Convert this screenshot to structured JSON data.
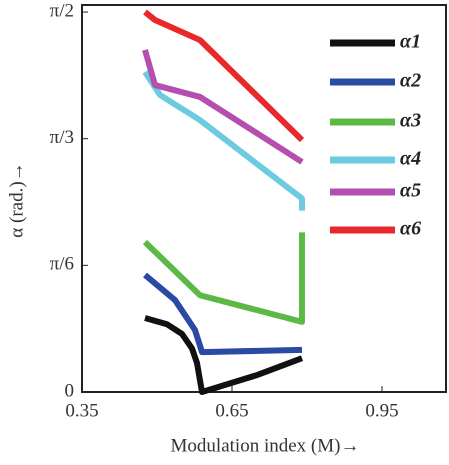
{
  "chart_data": {
    "type": "line",
    "xlabel": "Modulation index (M)→",
    "ylabel": "α (rad.)→",
    "xlim": [
      0.35,
      1.08
    ],
    "xticks": [
      0.35,
      0.65,
      0.95
    ],
    "ylim": [
      0,
      1.6
    ],
    "yticks": [
      0,
      {
        "value": 0.5236,
        "label": "π/6"
      },
      {
        "value": 1.0472,
        "label": "π/3"
      },
      {
        "value": 1.5708,
        "label": "π/2"
      }
    ],
    "series": [
      {
        "name": "α1",
        "color": "#111111",
        "x": [
          0.476,
          0.52,
          0.55,
          0.57,
          0.58,
          0.59,
          0.7,
          0.79
        ],
        "values": [
          0.306,
          0.28,
          0.24,
          0.18,
          0.12,
          0.0,
          0.07,
          0.14
        ]
      },
      {
        "name": "α2",
        "color": "#2a4aa6",
        "x": [
          0.476,
          0.536,
          0.576,
          0.59,
          0.79
        ],
        "values": [
          0.484,
          0.38,
          0.256,
          0.165,
          0.174
        ]
      },
      {
        "name": "α3",
        "color": "#5cb946",
        "x": [
          0.476,
          0.586,
          0.79,
          0.79
        ],
        "values": [
          0.62,
          0.4,
          0.29,
          0.66
        ]
      },
      {
        "name": "α4",
        "color": "#6ccbe0",
        "x": [
          0.476,
          0.506,
          0.586,
          0.79,
          0.79
        ],
        "values": [
          1.323,
          1.228,
          1.124,
          0.8,
          0.75
        ]
      },
      {
        "name": "α5",
        "color": "#b44fb0",
        "x": [
          0.476,
          0.496,
          0.586,
          0.79
        ],
        "values": [
          1.414,
          1.269,
          1.22,
          0.951
        ]
      },
      {
        "name": "α6",
        "color": "#e8282b",
        "x": [
          0.476,
          0.496,
          0.586,
          0.79
        ],
        "values": [
          1.571,
          1.538,
          1.455,
          1.042
        ]
      }
    ]
  }
}
